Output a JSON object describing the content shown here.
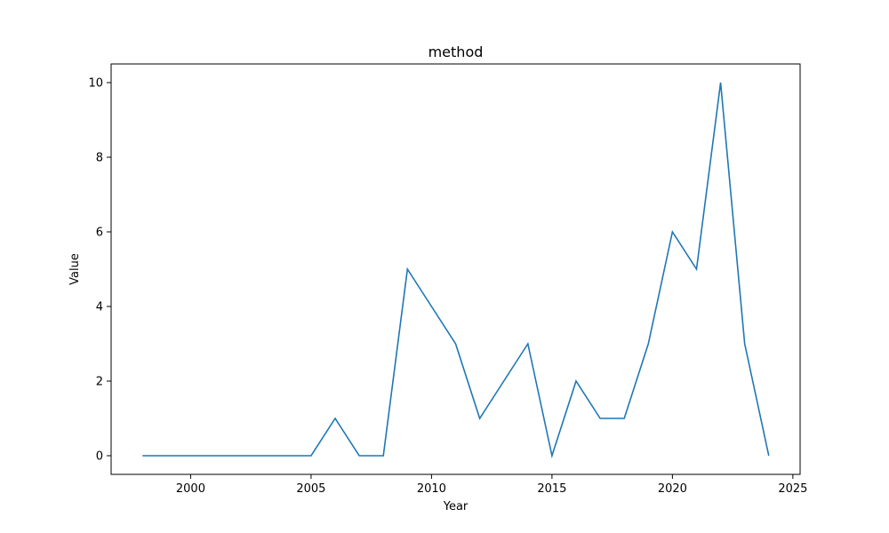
{
  "chart_data": {
    "type": "line",
    "title": "method",
    "xlabel": "Year",
    "ylabel": "Value",
    "xlim": [
      1996.7,
      2025.3
    ],
    "ylim": [
      -0.5,
      10.5
    ],
    "xticks": [
      2000,
      2005,
      2010,
      2015,
      2020,
      2025
    ],
    "yticks": [
      0,
      2,
      4,
      6,
      8,
      10
    ],
    "grid": false,
    "series": [
      {
        "color": "#1f77b4",
        "x": [
          1998,
          1999,
          2000,
          2001,
          2002,
          2003,
          2004,
          2005,
          2006,
          2007,
          2008,
          2009,
          2010,
          2011,
          2012,
          2013,
          2014,
          2015,
          2016,
          2017,
          2018,
          2019,
          2020,
          2021,
          2022,
          2023,
          2024
        ],
        "y": [
          0,
          0,
          0,
          0,
          0,
          0,
          0,
          0,
          1,
          0,
          0,
          5,
          4,
          3,
          1,
          2,
          3,
          0,
          2,
          1,
          1,
          3,
          6,
          5,
          10,
          3,
          0
        ]
      }
    ]
  }
}
